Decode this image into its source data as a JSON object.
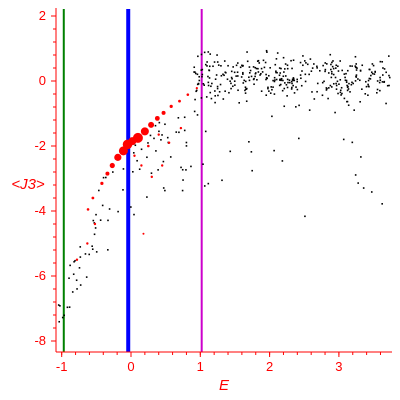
{
  "chart_data": {
    "type": "scatter",
    "xlabel": "E",
    "ylabel": "<J3>",
    "xlim": [
      -1.1,
      3.75
    ],
    "ylim": [
      -8.25,
      2.1
    ],
    "x_ticks": [
      -1,
      0,
      1,
      2,
      3
    ],
    "y_ticks": [
      2,
      0,
      -2,
      -4,
      -6,
      -8
    ],
    "grid": false,
    "axis_color": "#ff0000",
    "vlines": [
      {
        "x": -0.97,
        "color": "#008000"
      },
      {
        "x": -0.04,
        "color": "#0000ff"
      },
      {
        "x": 1.02,
        "color": "#cc00cc"
      }
    ],
    "red_points": {
      "color": "#ff0000",
      "points": [
        [
          -0.55,
          -3.6,
          1.4
        ],
        [
          -0.42,
          -3.15,
          1.6
        ],
        [
          -0.34,
          -2.85,
          2.0
        ],
        [
          -0.27,
          -2.6,
          2.6
        ],
        [
          -0.19,
          -2.35,
          3.6
        ],
        [
          -0.11,
          -2.15,
          4.5
        ],
        [
          -0.05,
          -1.95,
          4.8
        ],
        [
          0.02,
          -1.85,
          4.0
        ],
        [
          0.1,
          -1.75,
          5.0
        ],
        [
          0.2,
          -1.55,
          4.0
        ],
        [
          0.29,
          -1.35,
          3.0
        ],
        [
          0.38,
          -1.15,
          2.4
        ],
        [
          0.47,
          -0.98,
          2.0
        ],
        [
          0.58,
          -0.78,
          1.6
        ],
        [
          0.7,
          -0.62,
          1.4
        ],
        [
          0.82,
          -0.42,
          1.3
        ],
        [
          0.95,
          -0.22,
          1.1
        ],
        [
          -0.62,
          -3.95,
          1.3
        ],
        [
          -0.52,
          -4.4,
          1.2
        ],
        [
          -0.78,
          -5.5,
          1.2
        ],
        [
          -0.63,
          -5.0,
          1.2
        ],
        [
          0.15,
          -2.6,
          1.2
        ],
        [
          0.3,
          -2.95,
          1.2
        ],
        [
          0.45,
          -2.6,
          1.2
        ],
        [
          0.55,
          -1.9,
          1.2
        ],
        [
          0.72,
          -1.45,
          1.2
        ],
        [
          0.18,
          -4.7,
          1.0
        ],
        [
          0.05,
          -2.3,
          1.2
        ],
        [
          0.4,
          -1.65,
          1.2
        ],
        [
          0.25,
          -2.0,
          1.3
        ]
      ]
    },
    "black_points": {
      "color": "#000000",
      "count": 480,
      "description_ranges": []
    }
  }
}
